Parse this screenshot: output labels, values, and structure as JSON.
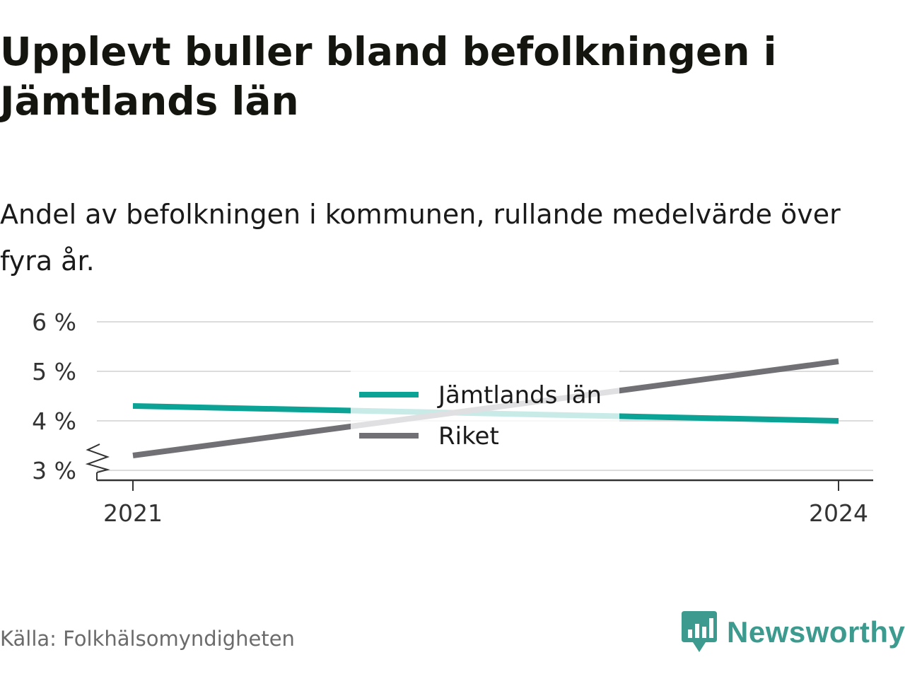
{
  "title": "Upplevt buller bland befolkningen i Jämtlands län",
  "subtitle": "Andel av befolkningen i kommunen, rullande medelvärde över fyra år.",
  "source": "Källa: Folkhälsomyndigheten",
  "brand": {
    "name": "Newsworthy",
    "icon": "newsworthy-logo-icon",
    "color": "#3c9b8e"
  },
  "chart_data": {
    "type": "line",
    "x": [
      2021,
      2024
    ],
    "series": [
      {
        "name": "Jämtlands län",
        "values": [
          4.3,
          4.0
        ],
        "color": "#0aa396"
      },
      {
        "name": "Riket",
        "values": [
          3.3,
          5.2
        ],
        "color": "#717075"
      }
    ],
    "ylim": [
      3,
      6
    ],
    "yticks": [
      3,
      4,
      5,
      6
    ],
    "ytick_labels": [
      "3 %",
      "4 %",
      "5 %",
      "6 %"
    ],
    "xticks": [
      2021,
      2024
    ],
    "xtick_labels": [
      "2021",
      "2024"
    ],
    "y_axis_break": true,
    "grid": true,
    "legend": "center"
  }
}
